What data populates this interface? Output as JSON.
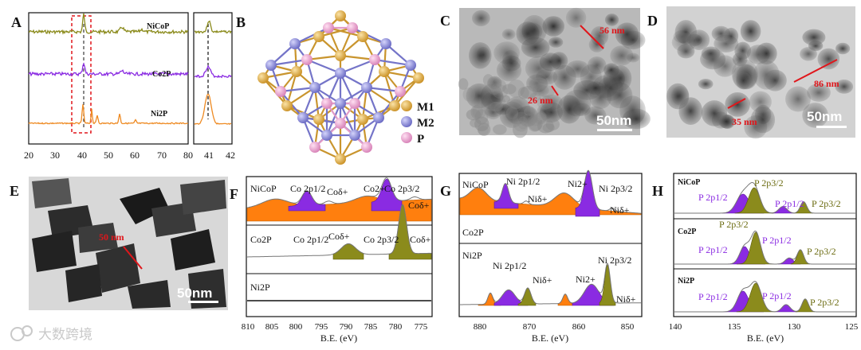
{
  "figure_labels": {
    "A": "A",
    "B": "B",
    "C": "C",
    "D": "D",
    "E": "E",
    "F": "F",
    "G": "G",
    "H": "H"
  },
  "panel_A": {
    "samples": [
      "NiCoP",
      "Co2P",
      "Ni2P"
    ],
    "x_ticks": [
      "20",
      "30",
      "40",
      "50",
      "60",
      "70",
      "80"
    ],
    "inset_ticks": [
      "41",
      "42"
    ],
    "colors": {
      "NiCoP": "#8b8b1c",
      "Co2P": "#8a2be2",
      "Ni2P": "#ee8a22"
    }
  },
  "panel_B": {
    "legend": [
      {
        "label": "M1",
        "color": "#e8b04a"
      },
      {
        "label": "M2",
        "color": "#8f8fe0"
      },
      {
        "label": "P",
        "color": "#f2a8d4"
      }
    ]
  },
  "panel_C": {
    "scale_bar": "50nm",
    "measurements": [
      "56 nm",
      "26 nm"
    ]
  },
  "panel_D": {
    "scale_bar": "50nm",
    "measurements": [
      "86 nm",
      "35 nm"
    ]
  },
  "panel_E": {
    "scale_bar": "50nm",
    "measurements": [
      "50 nm"
    ]
  },
  "panel_F": {
    "x_ticks": [
      "810",
      "805",
      "800",
      "795",
      "790",
      "785",
      "780",
      "775"
    ],
    "xlabel": "B.E. (eV)",
    "samples": [
      "NiCoP",
      "Co2P",
      "Ni2P"
    ],
    "annotations": {
      "co2p12": "Co 2p1/2",
      "cod1": "Coδ+",
      "co2p": "Co2+",
      "co2p32": "Co 2p3/2",
      "cod2": "Coδ+"
    }
  },
  "panel_G": {
    "x_ticks": [
      "880",
      "870",
      "860",
      "850"
    ],
    "xlabel": "B.E. (eV)",
    "samples": [
      "NiCoP",
      "Co2P",
      "Ni2P"
    ],
    "annotations": {
      "ni2p12": "Ni 2p1/2",
      "nid1": "Niδ+",
      "ni2": "Ni2+",
      "ni2p32": "Ni 2p3/2",
      "nid2": "Niδ+"
    }
  },
  "panel_H": {
    "x_ticks": [
      "140",
      "135",
      "130",
      "125"
    ],
    "xlabel": "B.E. (eV)",
    "samples": [
      "NiCoP",
      "Co2P",
      "Ni2P"
    ],
    "annotations": {
      "p2p12": "P 2p1/2",
      "p2p32": "P 2p3/2"
    }
  },
  "watermark": "大数跨境"
}
